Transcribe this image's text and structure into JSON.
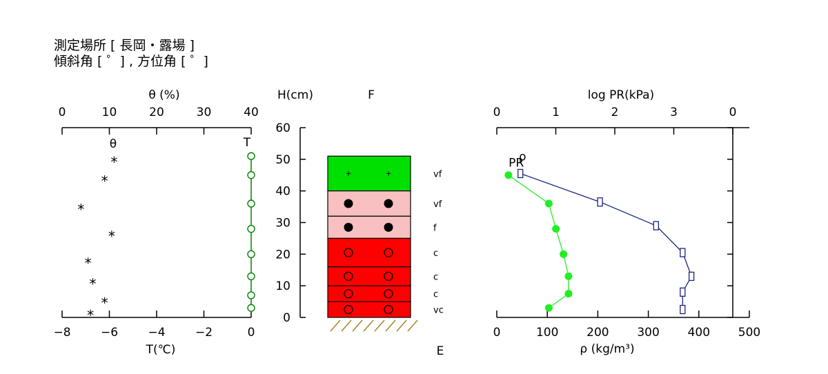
{
  "header": {
    "line1": "測定場所 [ 長岡・露場 ]",
    "line2": "傾斜角 [ ゜] , 方位角 [ ゜]"
  },
  "colors": {
    "theta": "#000000",
    "temperature": "#008000",
    "pr": "#1a237e",
    "density": "#22ee22",
    "layer_green": "#00e000",
    "layer_pink": "#f8c0c0",
    "layer_red": "#ff0000",
    "ground_hatch": "#a08020"
  },
  "left_panel": {
    "top_axis": {
      "label": "θ (%)",
      "ticks": [
        "0",
        "10",
        "20",
        "30",
        "40"
      ],
      "range": [
        0,
        40
      ]
    },
    "bottom_axis": {
      "label": "T(℃)",
      "ticks": [
        "−8",
        "−6",
        "−4",
        "−2",
        "0"
      ],
      "range": [
        -8,
        0
      ]
    },
    "theta_series_label": "θ",
    "temp_series_label": "T"
  },
  "snow_profile": {
    "height_axis": {
      "label": "H(cm)",
      "ticks": [
        "0",
        "10",
        "20",
        "30",
        "40",
        "50",
        "60"
      ],
      "range": [
        0,
        60
      ]
    },
    "top_label": "F",
    "bottom_label": "E",
    "layers": [
      {
        "bottom": 40,
        "top": 51,
        "fill": "green",
        "symbol": "+",
        "hardness": "vf"
      },
      {
        "bottom": 32,
        "top": 40,
        "fill": "pink",
        "symbol": "●",
        "hardness": "vf"
      },
      {
        "bottom": 25,
        "top": 32,
        "fill": "pink",
        "symbol": "●",
        "hardness": "f"
      },
      {
        "bottom": 16,
        "top": 25,
        "fill": "red",
        "symbol": "○",
        "hardness": "c"
      },
      {
        "bottom": 10,
        "top": 16,
        "fill": "red",
        "symbol": "○",
        "hardness": "c"
      },
      {
        "bottom": 5,
        "top": 10,
        "fill": "red",
        "symbol": "○",
        "hardness": "c"
      },
      {
        "bottom": 0,
        "top": 5,
        "fill": "red",
        "symbol": "○",
        "hardness": "vc"
      }
    ]
  },
  "right_panel": {
    "top_axis": {
      "label": "log PR(kPa)",
      "ticks": [
        "0",
        "1",
        "2",
        "3",
        "0"
      ],
      "range": [
        0,
        4
      ]
    },
    "bottom_axis": {
      "label": "ρ (kg/m³)",
      "ticks": [
        "0",
        "100",
        "200",
        "300",
        "400",
        "500"
      ],
      "range": [
        0,
        500
      ]
    },
    "pr_series_label": "PR",
    "density_series_label": "ρ"
  },
  "chart_data": {
    "type": "scatter",
    "y_axis": {
      "label": "H(cm)",
      "range": [
        0,
        60
      ]
    },
    "series": [
      {
        "name": "θ",
        "axis": "θ (%)",
        "marker": "*",
        "x": [
          11,
          9,
          4,
          10.5,
          5.5,
          6.5,
          9,
          6
        ],
        "y": [
          50,
          44,
          35,
          26.5,
          18,
          11.5,
          5.5,
          1.5
        ]
      },
      {
        "name": "T",
        "axis": "T(℃)",
        "marker": "o",
        "x": [
          0,
          0,
          0,
          0,
          0,
          0,
          0,
          0
        ],
        "y": [
          51,
          45,
          36,
          28,
          20,
          13,
          7,
          3
        ]
      },
      {
        "name": "PR",
        "axis": "log PR(kPa)",
        "marker": "square",
        "x": [
          0.4,
          1.75,
          2.7,
          3.15,
          3.3,
          3.15,
          3.15
        ],
        "y": [
          45.5,
          36.5,
          29,
          20.5,
          13,
          8,
          2.5
        ]
      },
      {
        "name": "ρ",
        "axis": "ρ (kg/m³)",
        "marker": "filled-circle",
        "x": [
          23,
          103,
          117,
          132,
          142,
          142,
          103
        ],
        "y": [
          45,
          36,
          28,
          20,
          13,
          7.5,
          3
        ]
      }
    ]
  }
}
